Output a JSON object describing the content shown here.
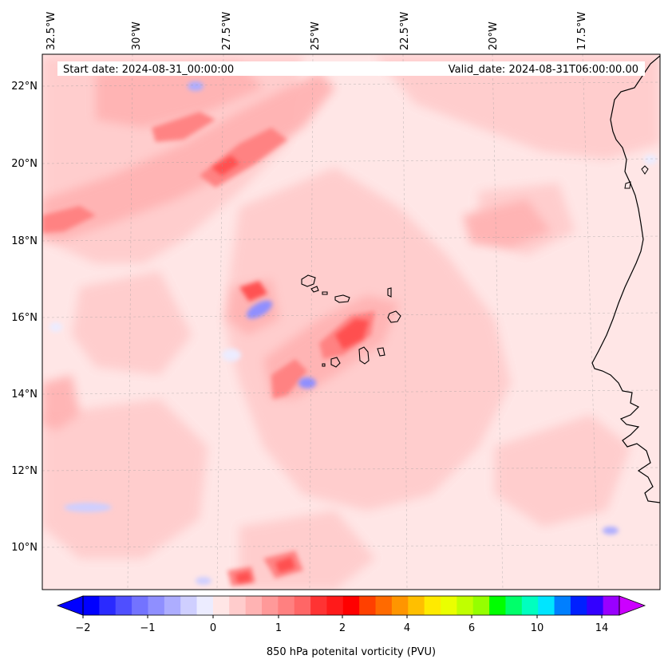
{
  "map": {
    "start_label": "Start date: 2024-08-31_00:00:00",
    "valid_label": "Valid_date: 2024-08-31T06:00:00.00",
    "lon_labels": [
      "32.5°W",
      "30°W",
      "27.5°W",
      "25°W",
      "22.5°W",
      "20°W",
      "17.5°W"
    ],
    "lat_labels": [
      "22°N",
      "20°N",
      "18°N",
      "16°N",
      "14°N",
      "12°N",
      "10°N"
    ]
  },
  "colorbar": {
    "title": "850 hPa potenital vorticity (PVU)",
    "tick_labels": [
      "−2",
      "−1",
      "0",
      "1",
      "2",
      "4",
      "6",
      "10",
      "14"
    ],
    "colors": [
      "#0000ff",
      "#2a2aff",
      "#4f4fff",
      "#7373ff",
      "#8f8fff",
      "#adadff",
      "#cfcfff",
      "#ececff",
      "#ffe6e6",
      "#ffcccc",
      "#ffb3b3",
      "#ff9999",
      "#ff8080",
      "#ff6666",
      "#ff3333",
      "#ff1a1a",
      "#ff0000",
      "#ff4000",
      "#ff6a00",
      "#ff9500",
      "#ffbf00",
      "#ffea00",
      "#eaff00",
      "#c0ff00",
      "#95ff00",
      "#00ff00",
      "#00ff6a",
      "#00ffbf",
      "#00e5ff",
      "#007fff",
      "#0020ff",
      "#3300ff",
      "#9900ff"
    ],
    "extend_low_color": "#0000ff",
    "extend_high_color": "#cc00ff"
  }
}
